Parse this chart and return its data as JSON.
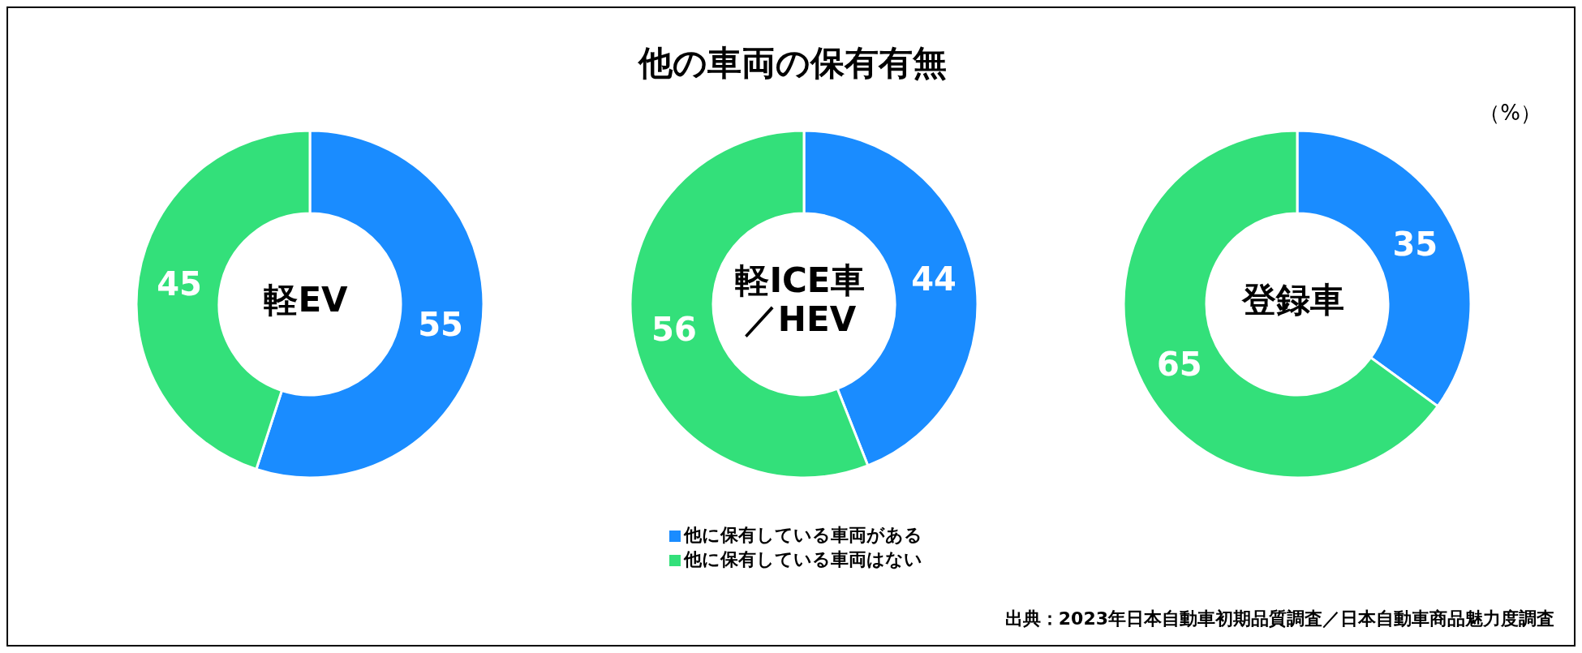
{
  "chart_data": [
    {
      "type": "donut",
      "title": "軽EV",
      "categories": [
        null,
        null
      ],
      "values": [
        55,
        45
      ],
      "colors": [
        "#1a8cff",
        "#33e07a"
      ],
      "data_labels": true
    },
    {
      "type": "donut",
      "title": "軽ICE車／HEV",
      "categories": [
        "他に保有している車両がある",
        "他に保有している車両はない"
      ],
      "values": [
        44,
        56
      ],
      "colors": [
        "#1a8cff",
        "#33e07a"
      ],
      "data_labels": true,
      "legend": "bottom"
    },
    {
      "type": "donut",
      "title": "登録車",
      "categories": [
        null,
        null
      ],
      "values": [
        35,
        65
      ],
      "colors": [
        "#1a8cff",
        "#33e07a"
      ],
      "data_labels": true
    },
    {
      "type": "other",
      "title": "他の車両の保有有無",
      "annotations": [
        "（%）",
        "出典：2023年日本自動車初期品質調査／日本自動車商品魅力度調査"
      ]
    }
  ]
}
